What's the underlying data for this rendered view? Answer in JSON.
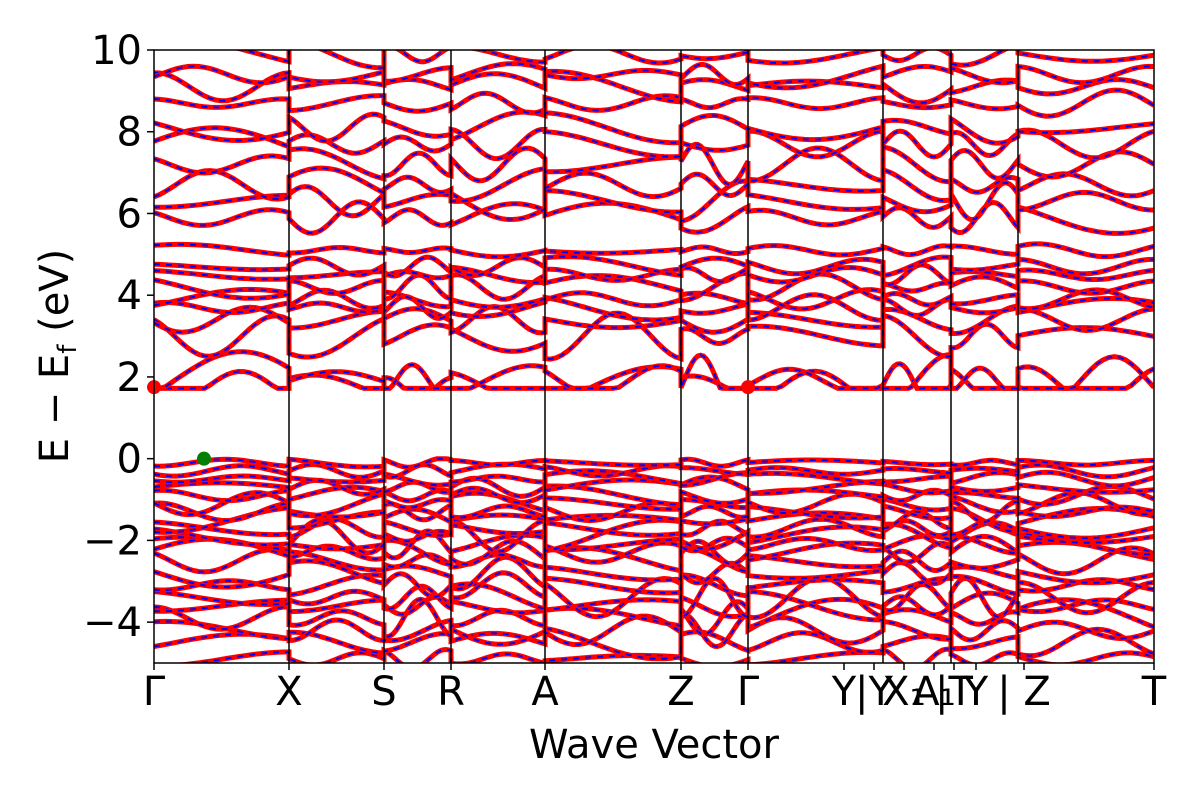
{
  "chart_data": {
    "type": "line",
    "title": "",
    "xlabel": "Wave Vector",
    "ylabel_parts": [
      "E − E",
      "f",
      " (eV)"
    ],
    "ylim": [
      -5,
      10
    ],
    "yticks": [
      -4,
      -2,
      0,
      2,
      4,
      6,
      8,
      10
    ],
    "ytick_labels": [
      "−4",
      "−2",
      "0",
      "2",
      "4",
      "6",
      "8",
      "10"
    ],
    "xlim": [
      0,
      1
    ],
    "kpoints": [
      {
        "label": "Γ",
        "x": 0.0
      },
      {
        "label": "X",
        "x": 0.135
      },
      {
        "label": "S",
        "x": 0.23
      },
      {
        "label": "R",
        "x": 0.297
      },
      {
        "label": "A",
        "x": 0.391
      },
      {
        "label": "Z",
        "x": 0.527
      },
      {
        "label": "Γ",
        "x": 0.594
      },
      {
        "label": "Y",
        "x": 0.69
      },
      {
        "label": "Y|X₁",
        "x": 0.729
      },
      {
        "label": "A₁",
        "x": 0.768
      },
      {
        "label": "T",
        "x": 0.797
      },
      {
        "label": "|Y",
        "x": 0.82
      },
      {
        "label": "T",
        "x": 0.797
      },
      {
        "label": "| Z",
        "x": 0.864
      },
      {
        "label": "T",
        "x": 1.0
      }
    ],
    "tick_label_texts": [
      "Γ",
      "X",
      "S",
      "R",
      "A",
      "Z",
      "Γ",
      "Y",
      "|Y",
      "X₁",
      "A₁",
      "|T",
      "Y",
      "| Z",
      "T"
    ],
    "series": [
      {
        "color": "#ff0000",
        "style": "solid"
      },
      {
        "color": "#0000ff",
        "style": "dashed"
      }
    ],
    "markers": [
      {
        "name": "VBM",
        "x": 0.05,
        "y": 0.0,
        "color": "#007f00"
      },
      {
        "name": "CBM",
        "x": 0.0,
        "y": 1.75,
        "color": "#ff0000"
      },
      {
        "name": "CBM",
        "x": 0.594,
        "y": 1.75,
        "color": "#ff0000"
      }
    ]
  }
}
